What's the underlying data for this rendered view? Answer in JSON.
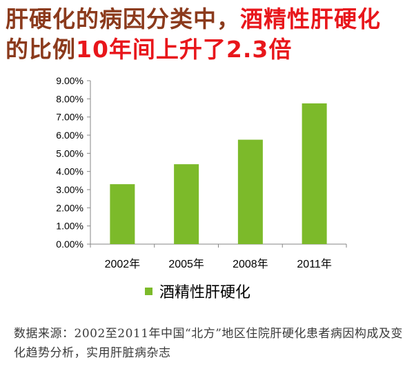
{
  "title": {
    "line1_part1": "肝硬化的病因分类中，",
    "line1_part2": "酒精性肝硬化",
    "line2_part1": "的比例",
    "line2_part2": "10年间上升了2.3倍"
  },
  "colors": {
    "bar": "#7cba2a",
    "title_brown": "#8b3a1c",
    "title_red": "#e8161b"
  },
  "chart_data": {
    "type": "bar",
    "categories": [
      "2002年",
      "2005年",
      "2008年",
      "2011年"
    ],
    "series": [
      {
        "name": "酒精性肝硬化",
        "values": [
          3.3,
          4.4,
          5.75,
          7.75
        ]
      }
    ],
    "ylim": [
      0,
      9
    ],
    "yticks": [
      "0.00%",
      "1.00%",
      "2.00%",
      "3.00%",
      "4.00%",
      "5.00%",
      "6.00%",
      "7.00%",
      "8.00%",
      "9.00%"
    ],
    "legend_position": "bottom",
    "grid": false
  },
  "source_text": "数据来源：2002至2011年中国“北方”地区住院肝硬化患者病因构成及变化趋势分析，实用肝脏病杂志"
}
